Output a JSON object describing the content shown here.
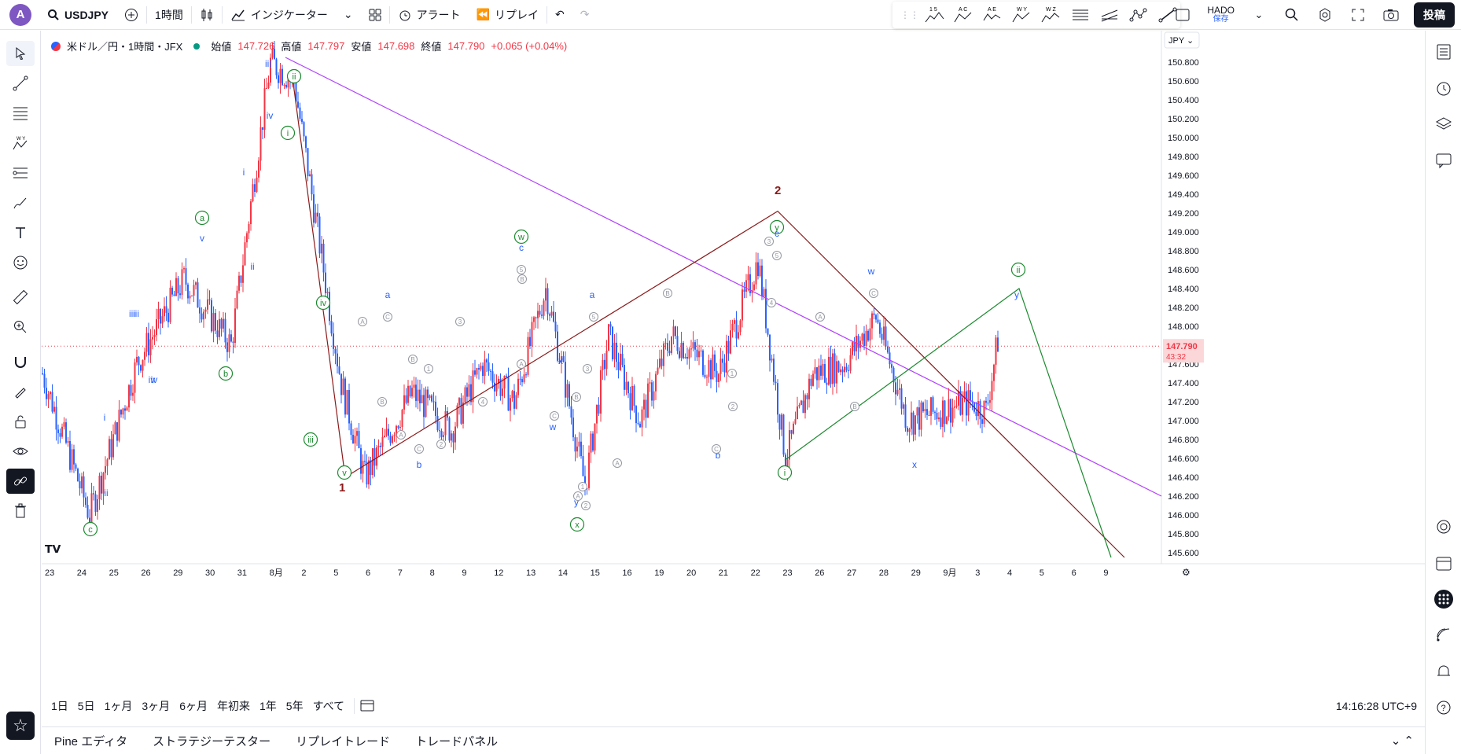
{
  "header": {
    "avatar_letter": "A",
    "symbol": "USDJPY",
    "interval": "1時間",
    "indicators_label": "インジケーター",
    "alert_label": "アラート",
    "replay_label": "リプレイ",
    "layout_name": "HADO",
    "layout_status": "保存",
    "publish_label": "投稿",
    "drawing_tool_labels": [
      "1 5",
      "A C",
      "A E",
      "W Y",
      "W Z"
    ]
  },
  "legend": {
    "title": "米ドル／円・1時間・JFX",
    "open_label": "始値",
    "open": "147.726",
    "high_label": "高値",
    "high": "147.797",
    "low_label": "安値",
    "low": "147.698",
    "close_label": "終値",
    "close": "147.790",
    "change": "+0.065 (+0.04%)"
  },
  "currency": "JPY",
  "price_axis": [
    "150.800",
    "150.600",
    "150.400",
    "150.200",
    "150.000",
    "149.800",
    "149.600",
    "149.400",
    "149.200",
    "149.000",
    "148.800",
    "148.600",
    "148.400",
    "148.200",
    "148.000",
    "147.800",
    "147.600",
    "147.400",
    "147.200",
    "147.000",
    "146.800",
    "146.600",
    "146.400",
    "146.200",
    "146.000",
    "145.800",
    "145.600"
  ],
  "last_price": "147.790",
  "countdown": "43:32",
  "time_axis": [
    "23",
    "24",
    "25",
    "26",
    "29",
    "30",
    "31",
    "8月",
    "2",
    "5",
    "6",
    "7",
    "8",
    "9",
    "12",
    "13",
    "14",
    "15",
    "16",
    "19",
    "20",
    "21",
    "22",
    "23",
    "26",
    "27",
    "28",
    "29",
    "9月",
    "3",
    "4",
    "5",
    "6",
    "9"
  ],
  "ranges": [
    "1日",
    "5日",
    "1ヶ月",
    "3ヶ月",
    "6ヶ月",
    "年初来",
    "1年",
    "5年",
    "すべて"
  ],
  "clock": "14:16:28 UTC+9",
  "bottom_tabs": [
    "Pine エディタ",
    "ストラテジーテスター",
    "リプレイトレード",
    "トレードパネル"
  ],
  "colors": {
    "up": "#f23645",
    "down": "#2962ff",
    "purple": "#b040ff",
    "brown": "#8b1a1a",
    "green": "#1b8a2e",
    "blue_label": "#2962ff",
    "gray_label": "#9598a1"
  },
  "wave_labels": {
    "big": [
      "1",
      "2"
    ],
    "circled_green": [
      "a",
      "b",
      "c",
      "ii",
      "i",
      "iv",
      "iii",
      "v",
      "w",
      "x",
      "y",
      "i",
      "ii"
    ],
    "blue": [
      "iii",
      "iv",
      "v",
      "i",
      "ii",
      "iii",
      "iv",
      "i",
      "ii",
      "a",
      "b",
      "c",
      "w",
      "x",
      "y",
      "a",
      "b",
      "c",
      "w",
      "x",
      "y",
      "v"
    ],
    "gray_circled": [
      "A",
      "B",
      "C",
      "1",
      "2",
      "3",
      "4",
      "5"
    ]
  },
  "chart_data": {
    "type": "candlestick",
    "title": "米ドル／円・1時間・JFX",
    "ylim": [
      145.5,
      151.0
    ],
    "current_close": 147.79
  }
}
